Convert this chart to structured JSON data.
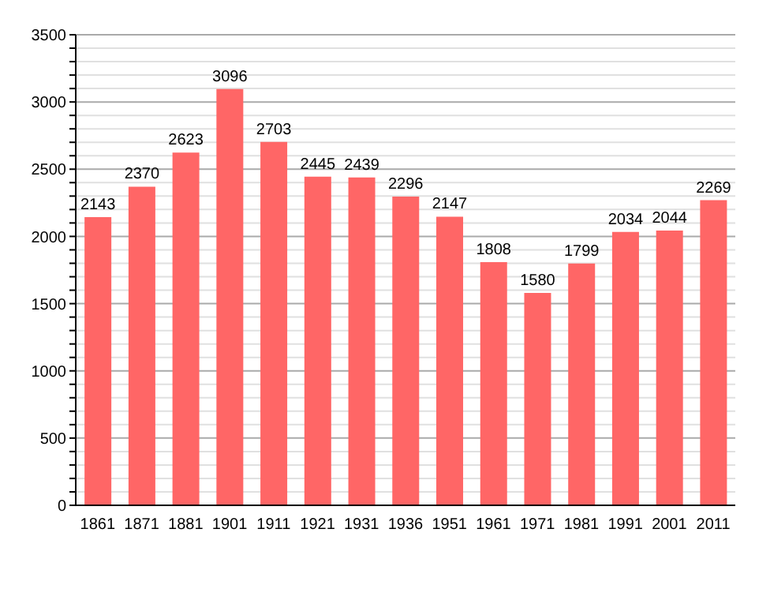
{
  "chart_data": {
    "type": "bar",
    "categories": [
      "1861",
      "1871",
      "1881",
      "1901",
      "1911",
      "1921",
      "1931",
      "1936",
      "1951",
      "1961",
      "1971",
      "1981",
      "1991",
      "2001",
      "2011"
    ],
    "values": [
      2143,
      2370,
      2623,
      3096,
      2703,
      2445,
      2439,
      2296,
      2147,
      1808,
      1580,
      1799,
      2034,
      2044,
      2269
    ],
    "color": "#ff6666",
    "data_labels": true,
    "grid": "y",
    "ylim": [
      0,
      3500
    ],
    "yticks": [
      0,
      {
        "value": 100,
        "label": null
      },
      {
        "value": 200,
        "label": null
      },
      {
        "value": 300,
        "label": null
      },
      {
        "value": 400,
        "label": null
      },
      500,
      {
        "value": 600,
        "label": null
      },
      {
        "value": 700,
        "label": null
      },
      {
        "value": 800,
        "label": null
      },
      {
        "value": 900,
        "label": null
      },
      1000,
      {
        "value": 1100,
        "label": null
      },
      {
        "value": 1200,
        "label": null
      },
      {
        "value": 1300,
        "label": null
      },
      {
        "value": 1400,
        "label": null
      },
      1500,
      {
        "value": 1600,
        "label": null
      },
      {
        "value": 1700,
        "label": null
      },
      {
        "value": 1800,
        "label": null
      },
      {
        "value": 1900,
        "label": null
      },
      2000,
      {
        "value": 2100,
        "label": null
      },
      {
        "value": 2200,
        "label": null
      },
      {
        "value": 2300,
        "label": null
      },
      {
        "value": 2400,
        "label": null
      },
      2500,
      {
        "value": 2600,
        "label": null
      },
      {
        "value": 2700,
        "label": null
      },
      {
        "value": 2800,
        "label": null
      },
      {
        "value": 2900,
        "label": null
      },
      3000,
      {
        "value": 3100,
        "label": null
      },
      {
        "value": 3200,
        "label": null
      },
      {
        "value": 3300,
        "label": null
      },
      {
        "value": 3400,
        "label": null
      },
      3500
    ]
  }
}
